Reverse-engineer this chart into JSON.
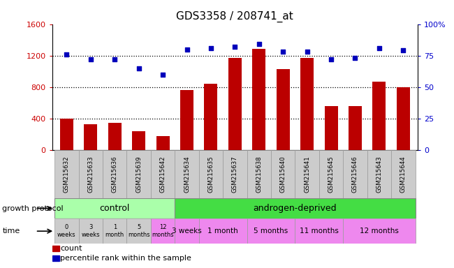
{
  "title": "GDS3358 / 208741_at",
  "samples": [
    "GSM215632",
    "GSM215633",
    "GSM215636",
    "GSM215639",
    "GSM215642",
    "GSM215634",
    "GSM215635",
    "GSM215637",
    "GSM215638",
    "GSM215640",
    "GSM215641",
    "GSM215645",
    "GSM215646",
    "GSM215643",
    "GSM215644"
  ],
  "bar_values": [
    400,
    330,
    350,
    240,
    175,
    760,
    840,
    1175,
    1290,
    1030,
    1175,
    560,
    560,
    870,
    800
  ],
  "dot_values": [
    76,
    72,
    72,
    65,
    60,
    80,
    81,
    82,
    84,
    78,
    78,
    72,
    73,
    81,
    79
  ],
  "bar_color": "#bb0000",
  "dot_color": "#0000bb",
  "ylim_left": [
    0,
    1600
  ],
  "ylim_right": [
    0,
    100
  ],
  "yticks_left": [
    0,
    400,
    800,
    1200,
    1600
  ],
  "yticks_right": [
    0,
    25,
    50,
    75,
    100
  ],
  "background_color": "#ffffff",
  "growth_protocol_label": "growth protocol",
  "time_label": "time",
  "control_label": "control",
  "androgen_label": "androgen-deprived",
  "control_color": "#aaffaa",
  "androgen_color": "#44dd44",
  "time_bg_grey": "#cccccc",
  "time_bg_pink": "#ee88ee",
  "time_labels_control": [
    "0\nweeks",
    "3\nweeks",
    "1\nmonth",
    "5\nmonths",
    "12\nmonths"
  ],
  "time_labels_androgen": [
    "3 weeks",
    "1 month",
    "5 months",
    "11 months",
    "12 months"
  ],
  "and_group_sizes": [
    1,
    2,
    2,
    2,
    3
  ],
  "legend_count_label": "count",
  "legend_pct_label": "percentile rank within the sample",
  "n_control": 5,
  "n_androgen": 10,
  "tick_label_color_left": "#cc0000",
  "tick_label_color_right": "#0000cc",
  "xticklabel_bg": "#cccccc"
}
